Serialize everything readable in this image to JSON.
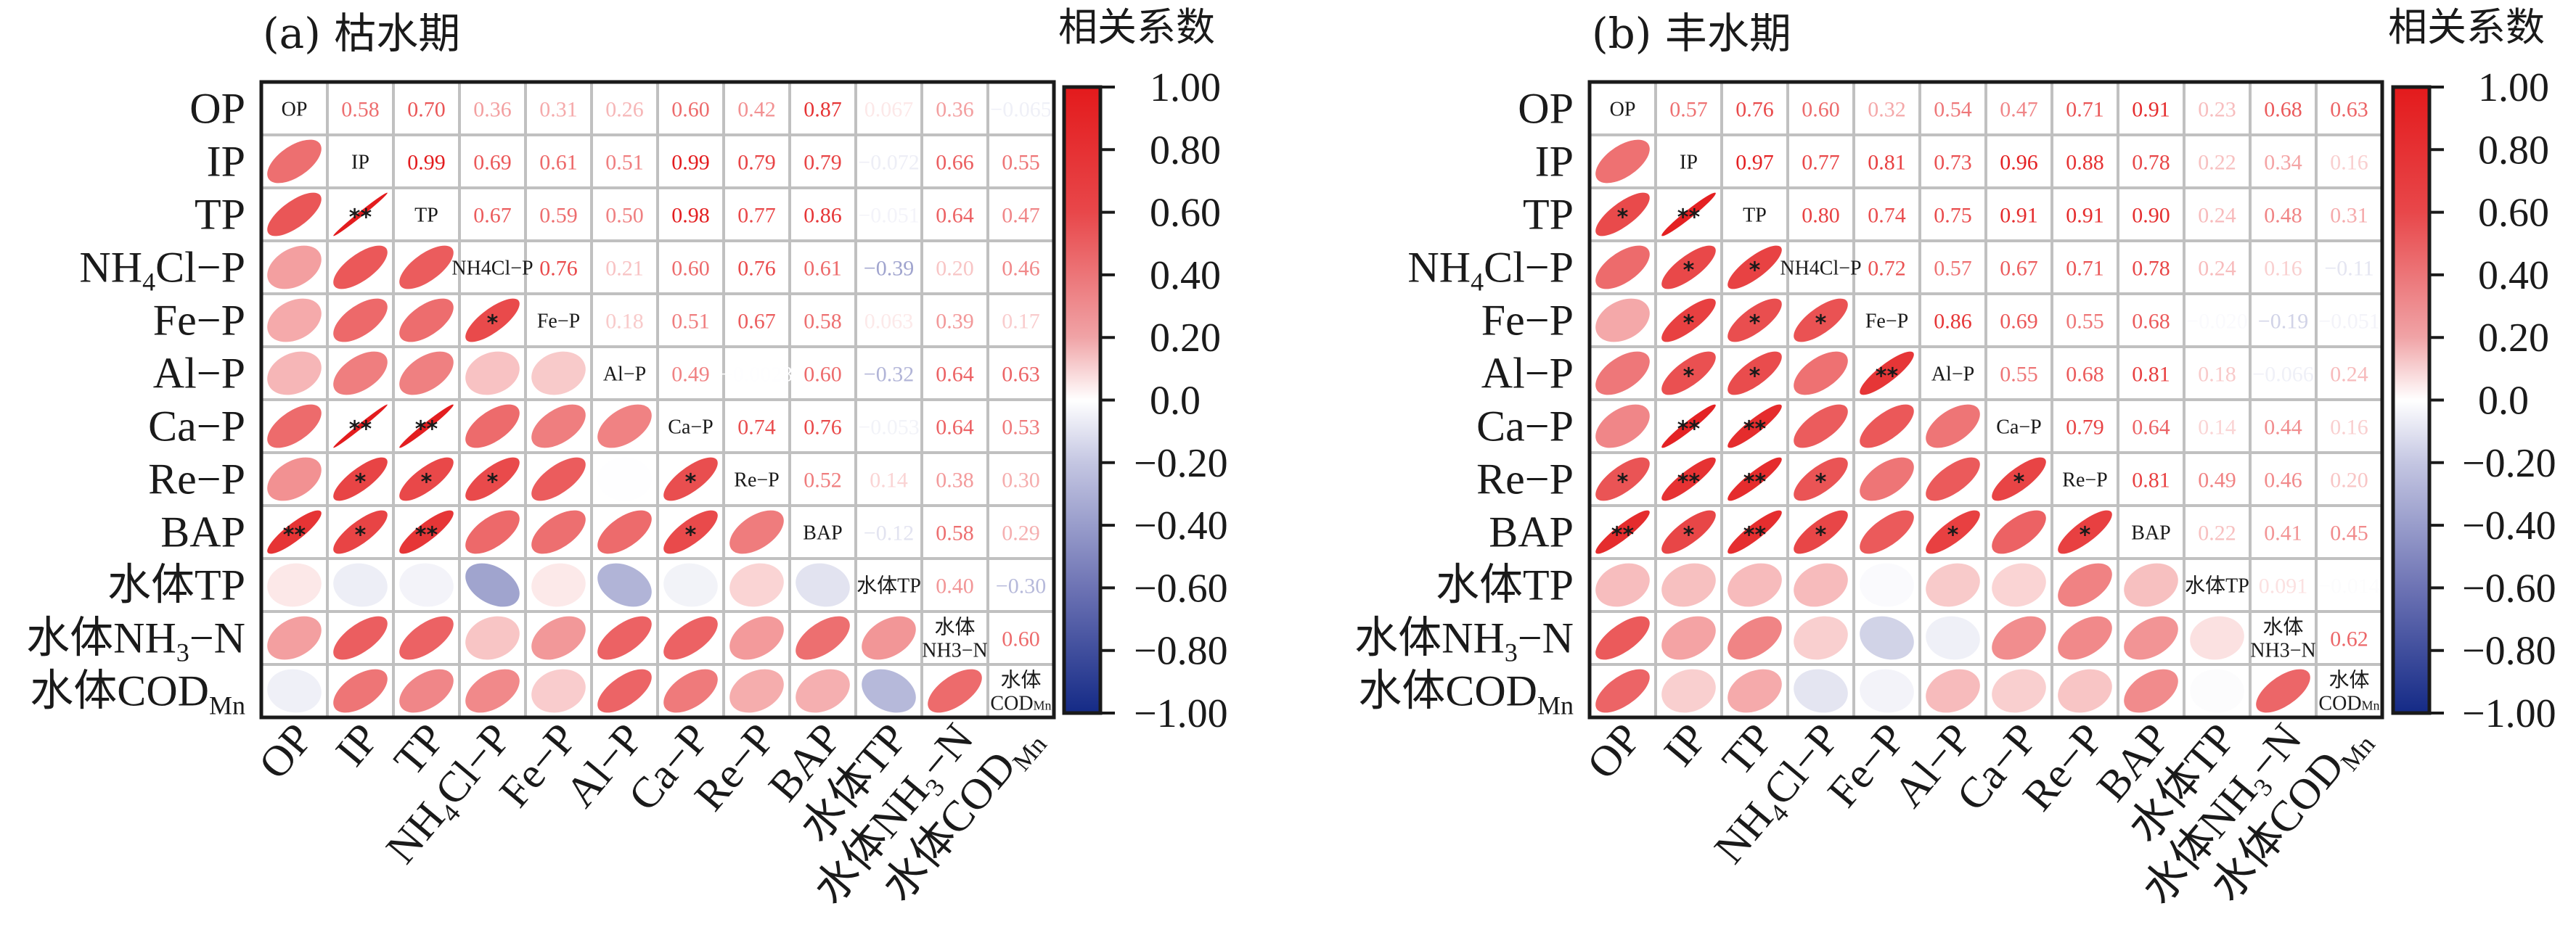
{
  "colorbar": {
    "title": "相关系数",
    "ticks": [
      "1.00",
      "0.80",
      "0.60",
      "0.40",
      "0.20",
      "0.0",
      "−0.20",
      "−0.40",
      "−0.60",
      "−0.80",
      "−1.00"
    ],
    "tick_values": [
      1.0,
      0.8,
      0.6,
      0.4,
      0.2,
      0.0,
      -0.2,
      -0.4,
      -0.6,
      -0.8,
      -1.0
    ],
    "colors": {
      "positive": "#e31a1c",
      "zero": "#ffffff",
      "negative": "#142a86"
    }
  },
  "chart_data": [
    {
      "type": "heatmap",
      "title": "(a) 枯水期",
      "variables": [
        "OP",
        "IP",
        "TP",
        "NH4Cl−P",
        "Fe−P",
        "Al−P",
        "Ca−P",
        "Re−P",
        "BAP",
        "水体TP",
        "水体NH3−N",
        "水体CODMn"
      ],
      "row_labels": [
        {
          "main": "OP"
        },
        {
          "main": "IP"
        },
        {
          "main": "TP"
        },
        {
          "main": "NH",
          "sub": "4",
          "tail": "Cl−P"
        },
        {
          "main": "Fe−P"
        },
        {
          "main": "Al−P"
        },
        {
          "main": "Ca−P"
        },
        {
          "main": "Re−P"
        },
        {
          "main": "BAP"
        },
        {
          "main": "水体TP"
        },
        {
          "main": "水体NH",
          "sub": "3",
          "tail": "−N"
        },
        {
          "main": "水体COD",
          "sub": "Mn",
          "tail": ""
        }
      ],
      "diag_labels": [
        "OP",
        "IP",
        "TP",
        "NH4Cl−P",
        "Fe−P",
        "Al−P",
        "Ca−P",
        "Re−P",
        "BAP",
        "水体TP",
        "水体|NH3−N",
        "水体|CODMn"
      ],
      "upper_values": [
        [
          "0.58",
          "0.70",
          "0.36",
          "0.31",
          "0.26",
          "0.60",
          "0.42",
          "0.87",
          "0.067",
          "0.36",
          "−0.065"
        ],
        [
          "0.99",
          "0.69",
          "0.61",
          "0.51",
          "0.99",
          "0.79",
          "0.79",
          "−0.072",
          "0.66",
          "0.55"
        ],
        [
          "0.67",
          "0.59",
          "0.50",
          "0.98",
          "0.77",
          "0.86",
          "−0.051",
          "0.64",
          "0.47"
        ],
        [
          "0.76",
          "0.21",
          "0.60",
          "0.76",
          "0.61",
          "−0.39",
          "0.20",
          "0.46"
        ],
        [
          "0.18",
          "0.51",
          "0.67",
          "0.58",
          "0.063",
          "0.39",
          "0.17"
        ],
        [
          "0.49",
          "−0.0023",
          "0.60",
          "−0.32",
          "0.64",
          "0.63"
        ],
        [
          "0.74",
          "0.76",
          "−0.053",
          "0.64",
          "0.53"
        ],
        [
          "0.52",
          "0.14",
          "0.38",
          "0.30"
        ],
        [
          "−0.12",
          "0.58",
          "0.29"
        ],
        [
          "0.40",
          "−0.30"
        ],
        [
          "0.60"
        ]
      ],
      "significance": [
        {
          "row": 2,
          "col": 1,
          "mark": "**"
        },
        {
          "row": 4,
          "col": 3,
          "mark": "*"
        },
        {
          "row": 6,
          "col": 1,
          "mark": "**"
        },
        {
          "row": 6,
          "col": 2,
          "mark": "**"
        },
        {
          "row": 7,
          "col": 1,
          "mark": "*"
        },
        {
          "row": 7,
          "col": 2,
          "mark": "*"
        },
        {
          "row": 7,
          "col": 3,
          "mark": "*"
        },
        {
          "row": 7,
          "col": 6,
          "mark": "*"
        },
        {
          "row": 8,
          "col": 0,
          "mark": "**"
        },
        {
          "row": 8,
          "col": 1,
          "mark": "*"
        },
        {
          "row": 8,
          "col": 2,
          "mark": "**"
        },
        {
          "row": 8,
          "col": 6,
          "mark": "*"
        }
      ],
      "value_range": [
        -1,
        1
      ]
    },
    {
      "type": "heatmap",
      "title": "(b) 丰水期",
      "variables": [
        "OP",
        "IP",
        "TP",
        "NH4Cl−P",
        "Fe−P",
        "Al−P",
        "Ca−P",
        "Re−P",
        "BAP",
        "水体TP",
        "水体NH3−N",
        "水体CODMn"
      ],
      "row_labels": [
        {
          "main": "OP"
        },
        {
          "main": "IP"
        },
        {
          "main": "TP"
        },
        {
          "main": "NH",
          "sub": "4",
          "tail": "Cl−P"
        },
        {
          "main": "Fe−P"
        },
        {
          "main": "Al−P"
        },
        {
          "main": "Ca−P"
        },
        {
          "main": "Re−P"
        },
        {
          "main": "BAP"
        },
        {
          "main": "水体TP"
        },
        {
          "main": "水体NH",
          "sub": "3",
          "tail": "−N"
        },
        {
          "main": "水体COD",
          "sub": "Mn",
          "tail": ""
        }
      ],
      "diag_labels": [
        "OP",
        "IP",
        "TP",
        "NH4Cl−P",
        "Fe−P",
        "Al−P",
        "Ca−P",
        "Re−P",
        "BAP",
        "水体TP",
        "水体|NH3−N",
        "水体|CODMn"
      ],
      "upper_values": [
        [
          "0.57",
          "0.76",
          "0.60",
          "0.32",
          "0.54",
          "0.47",
          "0.71",
          "0.91",
          "0.23",
          "0.68",
          "0.63"
        ],
        [
          "0.97",
          "0.77",
          "0.81",
          "0.73",
          "0.96",
          "0.88",
          "0.78",
          "0.22",
          "0.34",
          "0.16"
        ],
        [
          "0.80",
          "0.74",
          "0.75",
          "0.91",
          "0.91",
          "0.90",
          "0.24",
          "0.48",
          "0.31"
        ],
        [
          "0.72",
          "0.57",
          "0.67",
          "0.71",
          "0.78",
          "0.24",
          "0.16",
          "−0.11"
        ],
        [
          "0.86",
          "0.69",
          "0.55",
          "0.68",
          "−0.020",
          "−0.19",
          "−0.051"
        ],
        [
          "0.55",
          "0.68",
          "0.81",
          "0.18",
          "−0.066",
          "0.24"
        ],
        [
          "0.79",
          "0.64",
          "0.14",
          "0.44",
          "0.16"
        ],
        [
          "0.81",
          "0.49",
          "0.46",
          "0.20"
        ],
        [
          "0.22",
          "0.41",
          "0.45"
        ],
        [
          "0.091",
          "−0.014"
        ],
        [
          "0.62"
        ]
      ],
      "significance": [
        {
          "row": 2,
          "col": 0,
          "mark": "*"
        },
        {
          "row": 2,
          "col": 1,
          "mark": "**"
        },
        {
          "row": 3,
          "col": 1,
          "mark": "*"
        },
        {
          "row": 3,
          "col": 2,
          "mark": "*"
        },
        {
          "row": 4,
          "col": 1,
          "mark": "*"
        },
        {
          "row": 4,
          "col": 2,
          "mark": "*"
        },
        {
          "row": 4,
          "col": 3,
          "mark": "*"
        },
        {
          "row": 5,
          "col": 1,
          "mark": "*"
        },
        {
          "row": 5,
          "col": 2,
          "mark": "*"
        },
        {
          "row": 5,
          "col": 4,
          "mark": "**"
        },
        {
          "row": 6,
          "col": 1,
          "mark": "**"
        },
        {
          "row": 6,
          "col": 2,
          "mark": "**"
        },
        {
          "row": 7,
          "col": 0,
          "mark": "*"
        },
        {
          "row": 7,
          "col": 1,
          "mark": "**"
        },
        {
          "row": 7,
          "col": 2,
          "mark": "**"
        },
        {
          "row": 7,
          "col": 3,
          "mark": "*"
        },
        {
          "row": 7,
          "col": 6,
          "mark": "*"
        },
        {
          "row": 8,
          "col": 0,
          "mark": "**"
        },
        {
          "row": 8,
          "col": 1,
          "mark": "*"
        },
        {
          "row": 8,
          "col": 2,
          "mark": "**"
        },
        {
          "row": 8,
          "col": 3,
          "mark": "*"
        },
        {
          "row": 8,
          "col": 5,
          "mark": "*"
        },
        {
          "row": 8,
          "col": 7,
          "mark": "*"
        }
      ],
      "value_range": [
        -1,
        1
      ]
    }
  ]
}
